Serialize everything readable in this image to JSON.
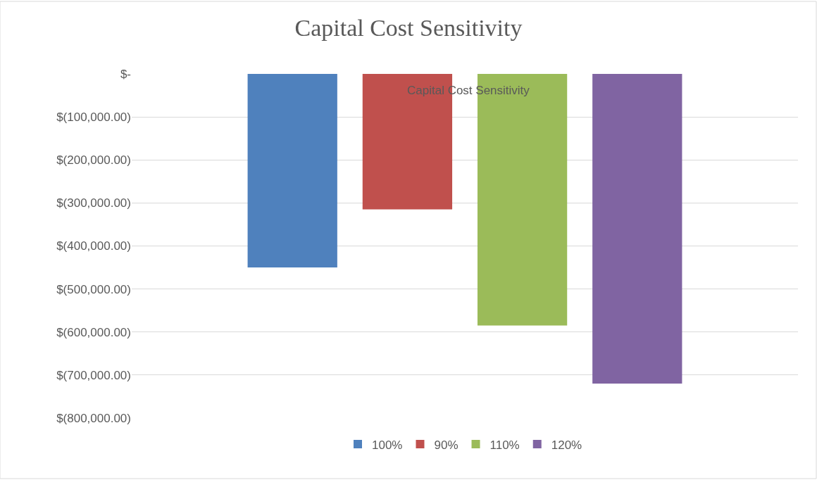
{
  "chart_data": {
    "type": "bar",
    "title": "Capital Cost Sensitivity",
    "annotations": [
      "Capital Cost Sensitivity"
    ],
    "categories": [
      null
    ],
    "series": [
      {
        "name": "100%",
        "color": "#4f81bd",
        "values": [
          -450000
        ]
      },
      {
        "name": "90%",
        "color": "#c0504d",
        "values": [
          -315000
        ]
      },
      {
        "name": "110%",
        "color": "#9bbb59",
        "values": [
          -585000
        ]
      },
      {
        "name": "120%",
        "color": "#8064a2",
        "values": [
          -720000
        ]
      }
    ],
    "ylim": [
      -800000,
      0
    ],
    "yticks": [
      {
        "value": 0,
        "label": "$-"
      },
      {
        "value": -100000,
        "label": "$(100,000.00)"
      },
      {
        "value": -200000,
        "label": "$(200,000.00)"
      },
      {
        "value": -300000,
        "label": "$(300,000.00)"
      },
      {
        "value": -400000,
        "label": "$(400,000.00)"
      },
      {
        "value": -500000,
        "label": "$(500,000.00)"
      },
      {
        "value": -600000,
        "label": "$(600,000.00)"
      },
      {
        "value": -700000,
        "label": "$(700,000.00)"
      },
      {
        "value": -800000,
        "label": "$(800,000.00)"
      }
    ],
    "grid": "y",
    "legend": "bottom",
    "tick_labels": "y"
  }
}
